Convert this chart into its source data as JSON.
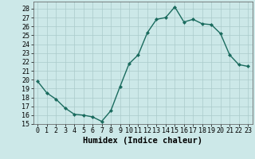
{
  "x": [
    0,
    1,
    2,
    3,
    4,
    5,
    6,
    7,
    8,
    9,
    10,
    11,
    12,
    13,
    14,
    15,
    16,
    17,
    18,
    19,
    20,
    21,
    22,
    23
  ],
  "y": [
    19.8,
    18.5,
    17.8,
    16.8,
    16.1,
    16.0,
    15.8,
    15.3,
    16.5,
    19.2,
    21.8,
    22.8,
    25.3,
    26.8,
    27.0,
    28.2,
    26.5,
    26.8,
    26.3,
    26.2,
    25.2,
    22.8,
    21.7,
    21.5
  ],
  "line_color": "#1a6b5e",
  "marker": "D",
  "marker_size": 2.0,
  "bg_color": "#cce8e8",
  "grid_color": "#aacaca",
  "xlabel": "Humidex (Indice chaleur)",
  "ylim": [
    15,
    28.8
  ],
  "xlim": [
    -0.5,
    23.5
  ],
  "yticks": [
    15,
    16,
    17,
    18,
    19,
    20,
    21,
    22,
    23,
    24,
    25,
    26,
    27,
    28
  ],
  "xticks": [
    0,
    1,
    2,
    3,
    4,
    5,
    6,
    7,
    8,
    9,
    10,
    11,
    12,
    13,
    14,
    15,
    16,
    17,
    18,
    19,
    20,
    21,
    22,
    23
  ],
  "xlabel_fontsize": 7.5,
  "tick_fontsize": 6.0,
  "linewidth": 1.0
}
